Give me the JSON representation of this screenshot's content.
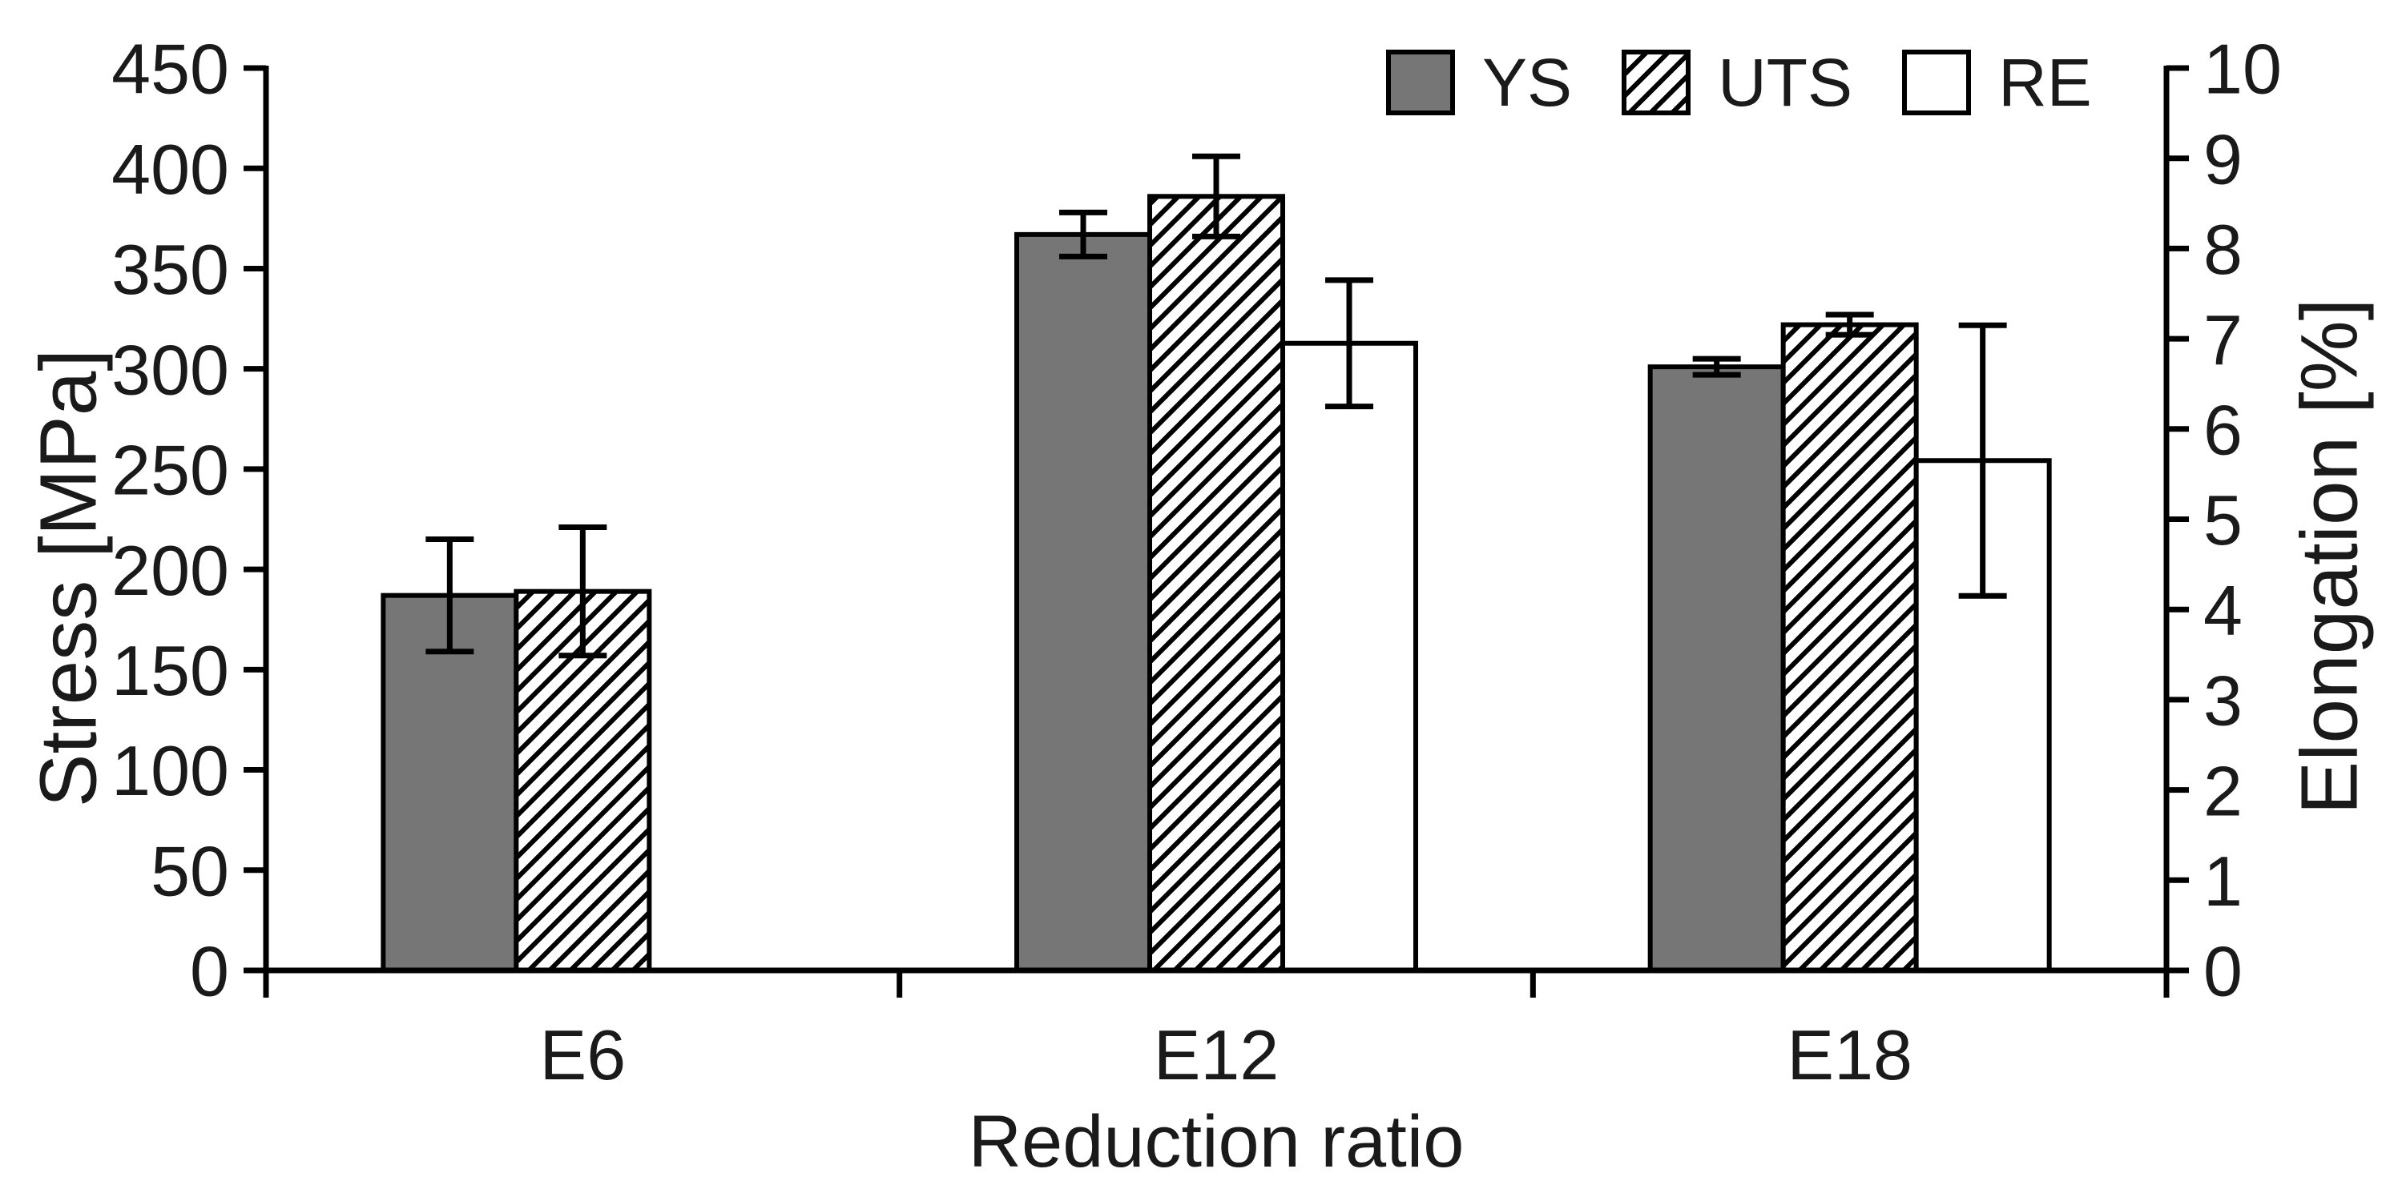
{
  "figure": {
    "xlabel": "Reduction ratio",
    "ylabel_left": "Stress [MPa]",
    "ylabel_right": "Elongation [%]"
  },
  "legend": {
    "items": [
      {
        "label": "YS",
        "swatch": "solid-gray"
      },
      {
        "label": "UTS",
        "swatch": "diagonal-hatch"
      },
      {
        "label": "RE",
        "swatch": "white"
      }
    ]
  },
  "colors": {
    "bar_gray": "#767676",
    "outline": "#000000",
    "background": "#ffffff",
    "text": "#1a1a1a"
  },
  "chart_data": {
    "type": "bar",
    "categories": [
      "E6",
      "E12",
      "E18"
    ],
    "xlabel": "Reduction ratio",
    "grid": false,
    "legend_position": "top-right",
    "axes": {
      "left": {
        "label": "Stress [MPa]",
        "min": 0,
        "max": 450,
        "step": 50,
        "ticks": [
          0,
          50,
          100,
          150,
          200,
          250,
          300,
          350,
          400,
          450
        ]
      },
      "right": {
        "label": "Elongation [%]",
        "min": 0,
        "max": 10,
        "step": 1,
        "ticks": [
          0,
          1,
          2,
          3,
          4,
          5,
          6,
          7,
          8,
          9,
          10
        ]
      }
    },
    "series": [
      {
        "name": "YS",
        "axis": "left",
        "style": "solid-gray",
        "values": [
          187,
          367,
          301
        ],
        "errors": [
          28,
          11,
          4
        ]
      },
      {
        "name": "UTS",
        "axis": "left",
        "style": "diagonal-hatch",
        "values": [
          189,
          386,
          322
        ],
        "errors": [
          32,
          20,
          5
        ]
      },
      {
        "name": "RE",
        "axis": "right",
        "style": "white",
        "values": [
          null,
          6.95,
          5.65
        ],
        "errors": [
          null,
          0.7,
          1.5
        ]
      }
    ]
  }
}
